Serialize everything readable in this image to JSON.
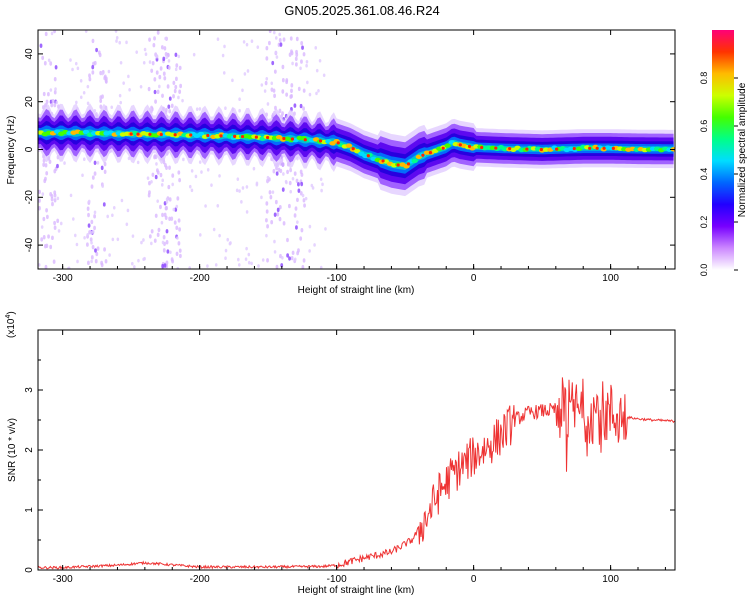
{
  "title": "GN05.2025.361.08.46.R24",
  "chart_data": [
    {
      "type": "heatmap",
      "name": "spectrogram",
      "xlabel": "Height of straight line (km)",
      "ylabel": "Frequency (Hz)",
      "xlim": [
        -318,
        147
      ],
      "ylim": [
        -50,
        50
      ],
      "x_ticks": [
        -300,
        -200,
        -100,
        0,
        100
      ],
      "x_tick_labels": [
        "-300",
        "-200",
        "-100",
        "0",
        "100"
      ],
      "y_ticks": [
        -40,
        -20,
        0,
        20,
        40
      ],
      "y_tick_labels": [
        "-40",
        "-20",
        "0",
        "20",
        "40"
      ],
      "colorbar": {
        "label": "Normalized spectral amplitude",
        "range": [
          0,
          1
        ],
        "ticks": [
          0,
          0.2,
          0.4,
          0.6,
          0.8
        ],
        "tick_labels": [
          "0.0",
          "0.2",
          "0.4",
          "0.6",
          "0.8"
        ],
        "colors": [
          "#ffffff",
          "#cc88ff",
          "#7700ff",
          "#2200ff",
          "#0066ff",
          "#00ddff",
          "#00ff88",
          "#44ff00",
          "#ccff00",
          "#ffbb00",
          "#ff3300",
          "#ff0077"
        ]
      },
      "ridge": {
        "x": [
          -318,
          -300,
          -250,
          -200,
          -150,
          -120,
          -100,
          -90,
          -80,
          -70,
          -60,
          -50,
          -45,
          -40,
          -30,
          -20,
          -15,
          -10,
          0,
          20,
          50,
          80,
          100,
          120,
          147
        ],
        "y": [
          7,
          7,
          6.5,
          6,
          5,
          4,
          3,
          1,
          -2,
          -4,
          -6,
          -7,
          -5,
          -3,
          -1,
          1,
          3,
          2,
          1,
          0.5,
          0,
          0.5,
          0.5,
          0.3,
          0.2
        ]
      },
      "noise_columns_x": [
        -310,
        -275,
        -230,
        -220,
        -145,
        -130
      ]
    },
    {
      "type": "line",
      "name": "snr",
      "xlabel": "Height of straight line (km)",
      "ylabel": "SNR (10 * v/v)",
      "scale_label": "(x10",
      "scale_exponent": "4",
      "xlim": [
        -318,
        147
      ],
      "ylim": [
        0,
        4
      ],
      "x_ticks": [
        -300,
        -200,
        -100,
        0,
        100
      ],
      "x_tick_labels": [
        "-300",
        "-200",
        "-100",
        "0",
        "100"
      ],
      "y_ticks": [
        0,
        1,
        2,
        3
      ],
      "y_tick_labels": [
        "0",
        "1",
        "2",
        "3"
      ],
      "series": [
        {
          "name": "SNR",
          "color": "#ee3333",
          "x": [
            -318,
            -300,
            -260,
            -240,
            -200,
            -150,
            -110,
            -100,
            -80,
            -60,
            -45,
            -35,
            -25,
            -15,
            -5,
            0,
            10,
            20,
            30,
            40,
            50,
            60,
            70,
            80,
            90,
            100,
            110,
            120,
            130,
            147
          ],
          "y": [
            0.04,
            0.04,
            0.08,
            0.12,
            0.05,
            0.05,
            0.06,
            0.08,
            0.2,
            0.3,
            0.5,
            0.85,
            1.3,
            1.6,
            1.8,
            1.9,
            2.05,
            2.25,
            2.5,
            2.62,
            2.65,
            2.67,
            2.65,
            2.66,
            2.64,
            2.6,
            2.55,
            2.52,
            2.5,
            2.48
          ]
        }
      ]
    }
  ]
}
